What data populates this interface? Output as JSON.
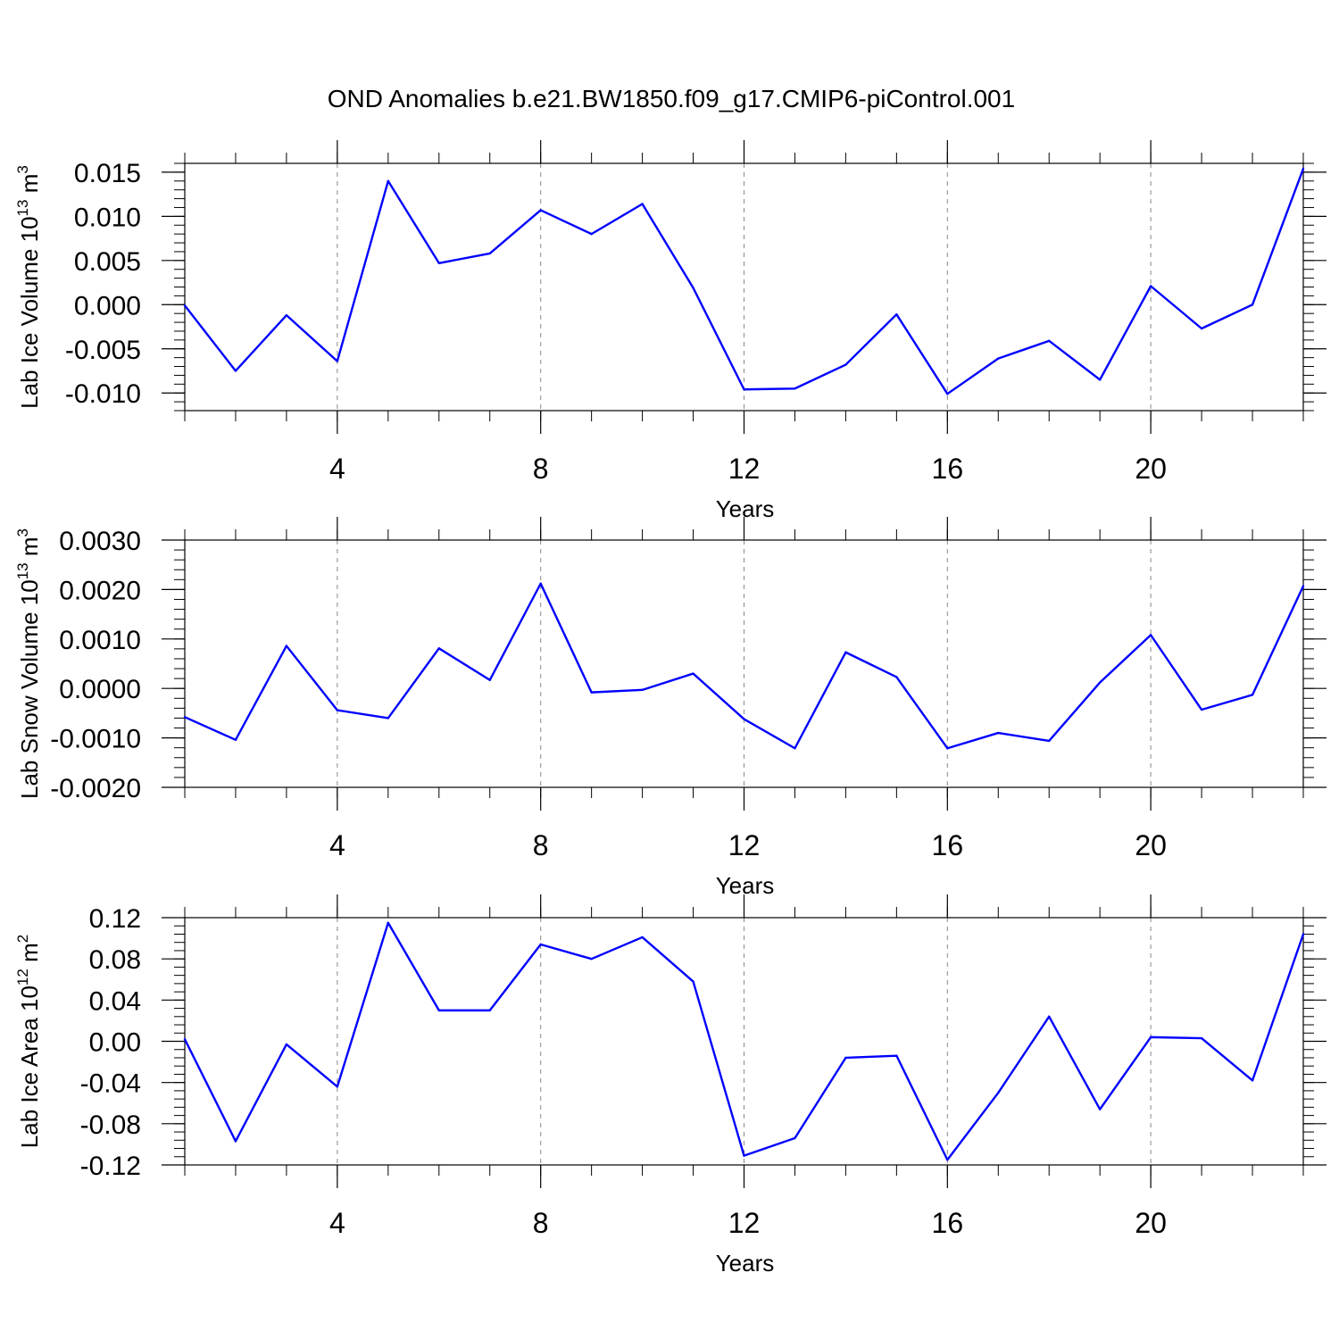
{
  "figure_title": "OND Anomalies b.e21.BW1850.f09_g17.CMIP6-piControl.001",
  "colors": {
    "series": "#0000ff",
    "frame": "#000000",
    "gridline": "#888888"
  },
  "chart_data": [
    {
      "type": "line",
      "ylabel": {
        "main": "Lab Ice Volume 10",
        "sup": "13",
        "unit": " m",
        "unitsup": "3"
      },
      "xlabel": "Years",
      "xlim": [
        1,
        23
      ],
      "ylim": [
        -0.012,
        0.016
      ],
      "x_major_ticks": [
        4,
        8,
        12,
        16,
        20
      ],
      "x_tick_labels": [
        "4",
        "8",
        "12",
        "16",
        "20"
      ],
      "y_major_ticks": [
        -0.01,
        -0.005,
        0.0,
        0.005,
        0.01,
        0.015
      ],
      "y_tick_labels": [
        "-0.010",
        "-0.005",
        "0.000",
        "0.005",
        "0.010",
        "0.015"
      ],
      "y_minor_step": 0.001,
      "x": [
        1,
        2,
        3,
        4,
        5,
        6,
        7,
        8,
        9,
        10,
        11,
        12,
        13,
        14,
        15,
        16,
        17,
        18,
        19,
        20,
        21,
        22,
        23
      ],
      "series": [
        {
          "name": "Lab Ice Volume",
          "values": [
            -0.0001,
            -0.0075,
            -0.0012,
            -0.0064,
            0.014,
            0.0047,
            0.0058,
            0.0107,
            0.008,
            0.0114,
            0.0019,
            -0.0096,
            -0.0095,
            -0.0068,
            -0.0011,
            -0.0101,
            -0.0061,
            -0.0041,
            -0.0085,
            0.0021,
            -0.0027,
            0.0,
            0.0154
          ]
        }
      ]
    },
    {
      "type": "line",
      "ylabel": {
        "main": "Lab Snow Volume 10",
        "sup": "13",
        "unit": " m",
        "unitsup": "3"
      },
      "xlabel": "Years",
      "xlim": [
        1,
        23
      ],
      "ylim": [
        -0.002,
        0.003
      ],
      "x_major_ticks": [
        4,
        8,
        12,
        16,
        20
      ],
      "x_tick_labels": [
        "4",
        "8",
        "12",
        "16",
        "20"
      ],
      "y_major_ticks": [
        -0.002,
        -0.001,
        0.0,
        0.001,
        0.002,
        0.003
      ],
      "y_tick_labels": [
        "-0.0020",
        "-0.0010",
        "0.0000",
        "0.0010",
        "0.0020",
        "0.0030"
      ],
      "y_minor_step": 0.0002,
      "x": [
        1,
        2,
        3,
        4,
        5,
        6,
        7,
        8,
        9,
        10,
        11,
        12,
        13,
        14,
        15,
        16,
        17,
        18,
        19,
        20,
        21,
        22,
        23
      ],
      "series": [
        {
          "name": "Lab Snow Volume",
          "values": [
            -0.00058,
            -0.00104,
            0.00086,
            -0.00044,
            -0.0006,
            0.00081,
            0.00017,
            0.00212,
            -8e-05,
            -3e-05,
            0.0003,
            -0.00062,
            -0.00121,
            0.00073,
            0.00023,
            -0.00121,
            -0.0009,
            -0.00106,
            0.00012,
            0.00108,
            -0.00043,
            -0.00013,
            0.00207
          ]
        }
      ]
    },
    {
      "type": "line",
      "ylabel": {
        "main": "Lab Ice Area 10",
        "sup": "12",
        "unit": " m",
        "unitsup": "2"
      },
      "xlabel": "Years",
      "xlim": [
        1,
        23
      ],
      "ylim": [
        -0.12,
        0.12
      ],
      "x_major_ticks": [
        4,
        8,
        12,
        16,
        20
      ],
      "x_tick_labels": [
        "4",
        "8",
        "12",
        "16",
        "20"
      ],
      "y_major_ticks": [
        -0.12,
        -0.08,
        -0.04,
        0.0,
        0.04,
        0.08,
        0.12
      ],
      "y_tick_labels": [
        "-0.12",
        "-0.08",
        "-0.04",
        "0.00",
        "0.04",
        "0.08",
        "0.12"
      ],
      "y_minor_step": 0.008,
      "x": [
        1,
        2,
        3,
        4,
        5,
        6,
        7,
        8,
        9,
        10,
        11,
        12,
        13,
        14,
        15,
        16,
        17,
        18,
        19,
        20,
        21,
        22,
        23
      ],
      "series": [
        {
          "name": "Lab Ice Area",
          "values": [
            0.002,
            -0.097,
            -0.003,
            -0.044,
            0.115,
            0.03,
            0.03,
            0.094,
            0.08,
            0.101,
            0.058,
            -0.111,
            -0.094,
            -0.016,
            -0.014,
            -0.115,
            -0.05,
            0.024,
            -0.066,
            0.004,
            0.003,
            -0.038,
            0.104
          ]
        }
      ]
    }
  ]
}
